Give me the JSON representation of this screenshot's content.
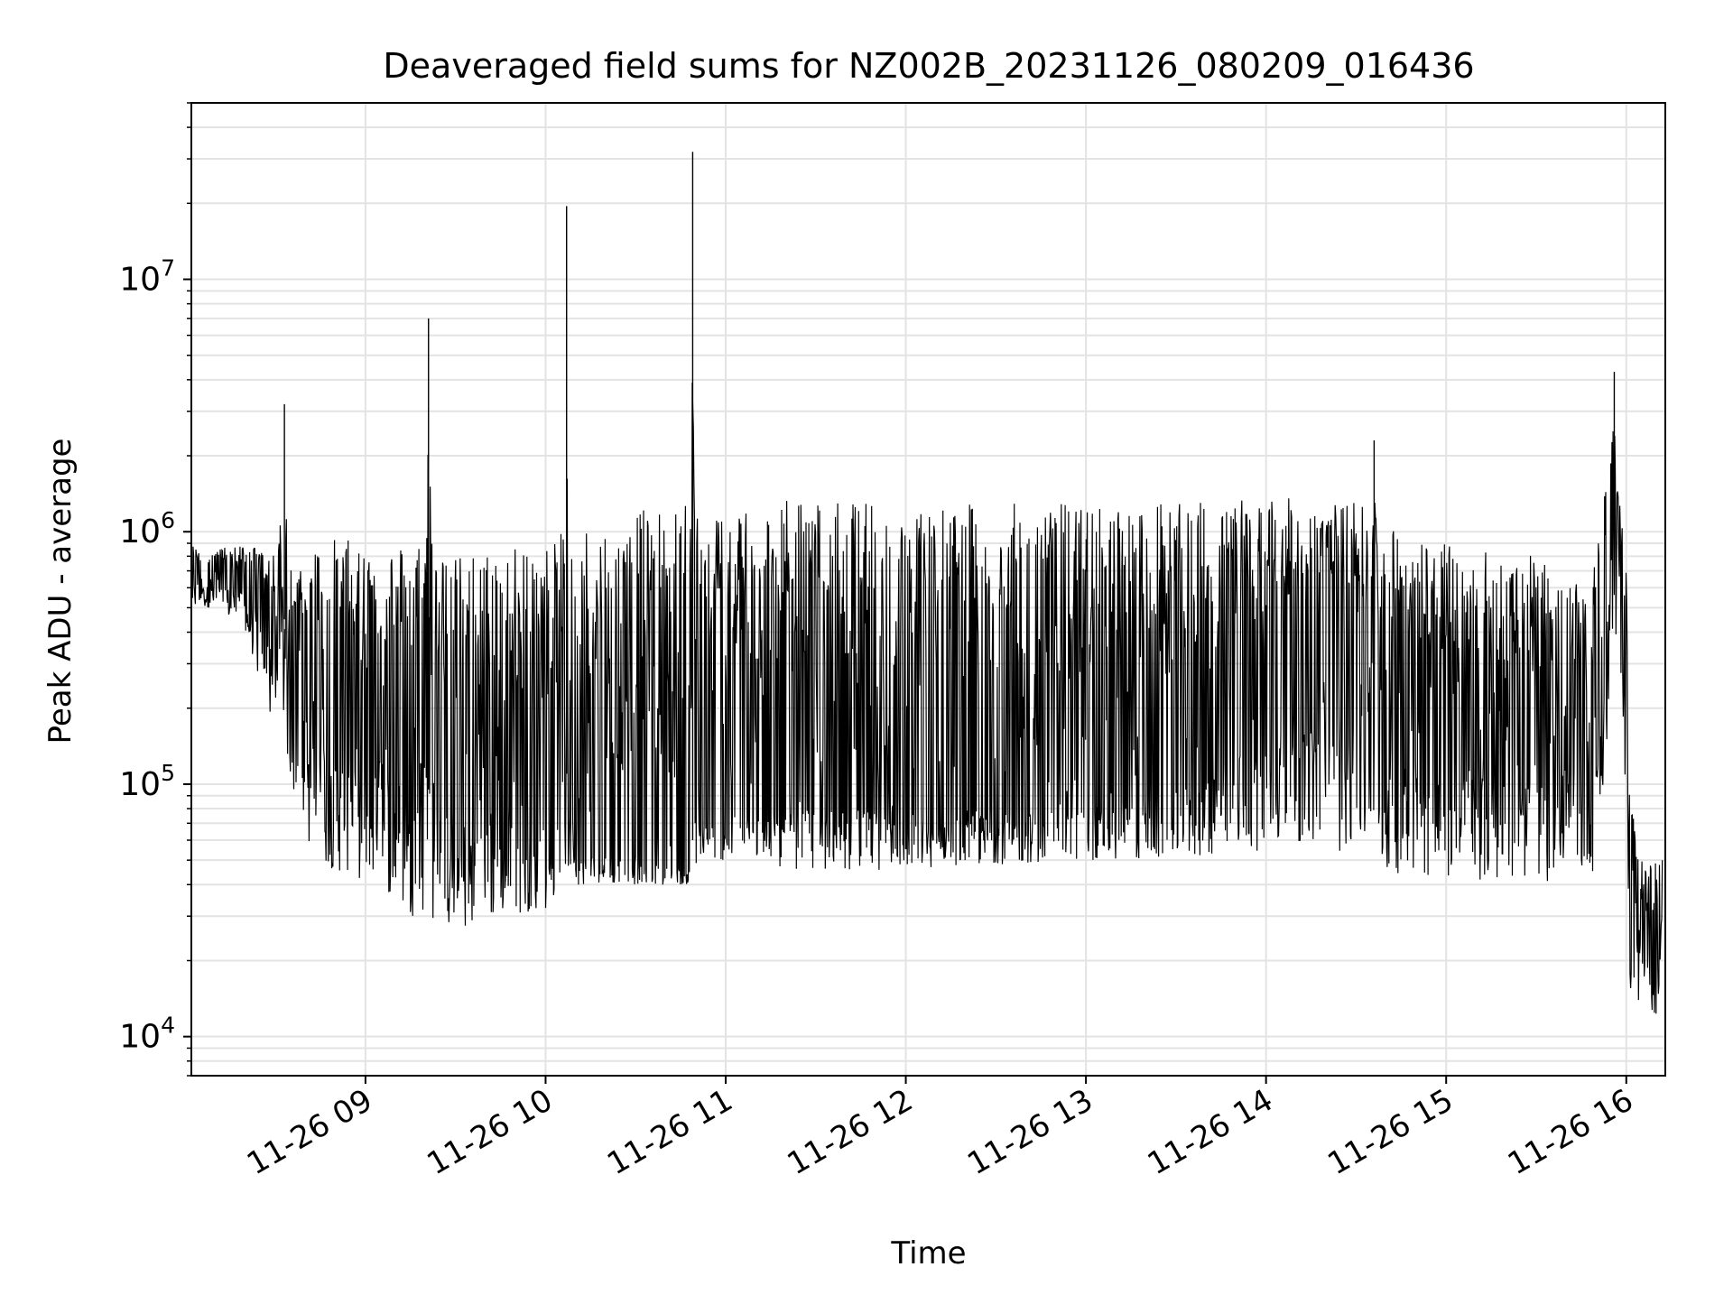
{
  "chart_data": {
    "type": "line",
    "title": "Deaveraged field sums for NZ002B_20231126_080209_016436",
    "xlabel": "Time",
    "ylabel": "Peak ADU - average",
    "y_scale": "log",
    "grid": true,
    "legend": "none",
    "line_color": "#000000",
    "grid_color": "#e3e3e3",
    "xlim": [
      "2023-11-26 08:02",
      "2023-11-26 16:13"
    ],
    "ylim": [
      7000,
      50000000
    ],
    "x_ticks": [
      {
        "time": "2023-11-26 09:00",
        "label": "11-26 09"
      },
      {
        "time": "2023-11-26 10:00",
        "label": "11-26 10"
      },
      {
        "time": "2023-11-26 11:00",
        "label": "11-26 11"
      },
      {
        "time": "2023-11-26 12:00",
        "label": "11-26 12"
      },
      {
        "time": "2023-11-26 13:00",
        "label": "11-26 13"
      },
      {
        "time": "2023-11-26 14:00",
        "label": "11-26 14"
      },
      {
        "time": "2023-11-26 15:00",
        "label": "11-26 15"
      },
      {
        "time": "2023-11-26 16:00",
        "label": "11-26 16"
      }
    ],
    "y_ticks": [
      {
        "value": 10000,
        "base": "10",
        "exp": "4"
      },
      {
        "value": 100000,
        "base": "10",
        "exp": "5"
      },
      {
        "value": 1000000,
        "base": "10",
        "exp": "6"
      },
      {
        "value": 10000000,
        "base": "10",
        "exp": "7"
      }
    ],
    "series": [
      {
        "x": [
          "2023-11-26 08:02",
          "2023-11-26 08:10",
          "2023-11-26 08:20",
          "2023-11-26 08:30",
          "2023-11-26 08:33",
          "2023-11-26 08:35",
          "2023-11-26 08:37",
          "2023-11-26 08:40",
          "2023-11-26 08:45",
          "2023-11-26 08:50",
          "2023-11-26 09:00",
          "2023-11-26 09:10",
          "2023-11-26 09:15",
          "2023-11-26 09:20",
          "2023-11-26 09:21",
          "2023-11-26 09:23",
          "2023-11-26 09:30",
          "2023-11-26 09:45",
          "2023-11-26 10:00",
          "2023-11-26 10:06",
          "2023-11-26 10:07",
          "2023-11-26 10:08",
          "2023-11-26 10:15",
          "2023-11-26 10:30",
          "2023-11-26 10:40",
          "2023-11-26 10:48",
          "2023-11-26 10:49",
          "2023-11-26 10:50",
          "2023-11-26 10:51",
          "2023-11-26 11:00",
          "2023-11-26 11:30",
          "2023-11-26 12:00",
          "2023-11-26 12:30",
          "2023-11-26 13:00",
          "2023-11-26 13:30",
          "2023-11-26 14:00",
          "2023-11-26 14:20",
          "2023-11-26 14:35",
          "2023-11-26 14:36",
          "2023-11-26 14:37",
          "2023-11-26 15:00",
          "2023-11-26 15:30",
          "2023-11-26 15:45",
          "2023-11-26 15:50",
          "2023-11-26 15:53",
          "2023-11-26 15:56",
          "2023-11-26 15:58",
          "2023-11-26 16:00",
          "2023-11-26 16:01",
          "2023-11-26 16:05",
          "2023-11-26 16:10",
          "2023-11-26 16:12"
        ],
        "y": [
          600000,
          700000,
          650000,
          450000,
          3200000,
          400000,
          350000,
          300000,
          250000,
          200000,
          250000,
          180000,
          150000,
          200000,
          7000000,
          150000,
          120000,
          100000,
          80000,
          110000,
          19500000,
          70000,
          60000,
          55000,
          50000,
          48000,
          32000000,
          60000,
          80000,
          90000,
          100000,
          95000,
          92000,
          100000,
          120000,
          250000,
          450000,
          300000,
          2300000,
          250000,
          180000,
          150000,
          200000,
          400000,
          1200000,
          4300000,
          800000,
          400000,
          80000,
          25000,
          20000,
          40000
        ],
        "envelope_min": [
          500000,
          500000,
          400000,
          150000,
          150000,
          100000,
          80000,
          60000,
          50000,
          45000,
          40000,
          35000,
          30000,
          30000,
          30000,
          28000,
          25000,
          30000,
          32000,
          34000,
          35000,
          40000,
          40000,
          40000,
          40000,
          40000,
          40000,
          45000,
          48000,
          50000,
          45000,
          46000,
          48000,
          50000,
          50000,
          55000,
          55000,
          50000,
          50000,
          45000,
          42000,
          40000,
          45000,
          45000,
          100000,
          200000,
          300000,
          50000,
          15000,
          12000,
          12000,
          20000
        ],
        "envelope_max": [
          900000,
          850000,
          900000,
          800000,
          800000,
          750000,
          700000,
          900000,
          900000,
          950000,
          900000,
          900000,
          950000,
          950000,
          950000,
          900000,
          800000,
          900000,
          900000,
          1000000,
          1100000,
          1000000,
          1200000,
          1200000,
          1300000,
          1300000,
          1300000,
          1350000,
          1350000,
          1350000,
          1350000,
          1300000,
          1300000,
          1300000,
          1300000,
          1400000,
          1300000,
          1300000,
          1300000,
          1100000,
          900000,
          800000,
          600000,
          900000,
          1500000,
          1500000,
          1300000,
          800000,
          100000,
          50000,
          50000,
          60000
        ]
      }
    ]
  }
}
